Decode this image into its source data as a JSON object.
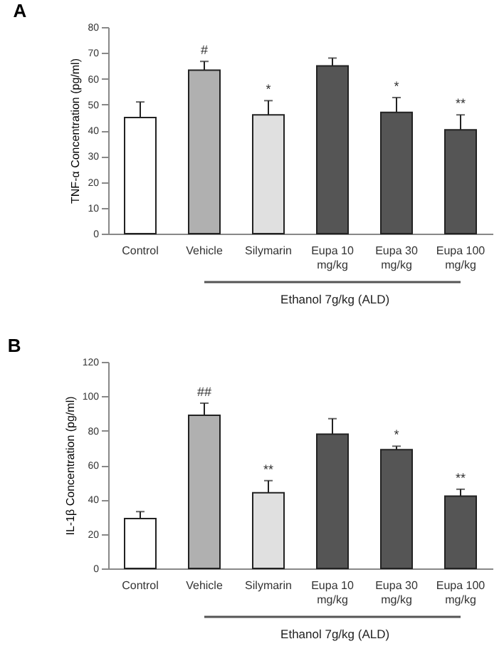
{
  "chart_data": [
    {
      "type": "bar",
      "title": "A",
      "ylabel": "TNF-α Concentration (pg/ml)",
      "categories": [
        "Control",
        "Vehicle",
        "Silymarin",
        "Eupa 10\nmg/kg",
        "Eupa 30\nmg/kg",
        "Eupa 100\nmg/kg"
      ],
      "values": [
        45,
        63.3,
        46,
        65,
        47,
        40.2
      ],
      "errors": [
        [
          45,
          51
        ],
        [
          63.3,
          66.7
        ],
        [
          46,
          51.5
        ],
        [
          65,
          68
        ],
        [
          47,
          52.7
        ],
        [
          40.2,
          46
        ]
      ],
      "colors": [
        "#ffffff",
        "#b0b0b0",
        "#e0e0e0",
        "#555555",
        "#555555",
        "#555555"
      ],
      "ylim": [
        0,
        80
      ],
      "yticks": [
        0,
        10,
        20,
        30,
        40,
        50,
        60,
        70,
        80
      ],
      "grid": false,
      "annotations": [
        {
          "text": "#",
          "x": "Vehicle",
          "y": 66.7
        },
        {
          "text": "*",
          "x": "Silymarin",
          "y": 51.5
        },
        {
          "text": "*",
          "x": "Eupa 30\nmg/kg",
          "y": 52.7
        },
        {
          "text": "**",
          "x": "Eupa 100\nmg/kg",
          "y": 46
        },
        "Ethanol 7g/kg (ALD)"
      ]
    },
    {
      "type": "bar",
      "title": "B",
      "ylabel": "IL-1β Concentration (pg/ml)",
      "categories": [
        "Control",
        "Vehicle",
        "Silymarin",
        "Eupa 10\nmg/kg",
        "Eupa 30\nmg/kg",
        "Eupa 100\nmg/kg"
      ],
      "values": [
        29,
        89,
        44,
        78,
        69,
        42
      ],
      "errors": [
        [
          29,
          33
        ],
        [
          89,
          96
        ],
        [
          44,
          51
        ],
        [
          78,
          87
        ],
        [
          69,
          71
        ],
        [
          42,
          46
        ]
      ],
      "colors": [
        "#ffffff",
        "#b0b0b0",
        "#e0e0e0",
        "#555555",
        "#555555",
        "#555555"
      ],
      "ylim": [
        0,
        120
      ],
      "yticks": [
        0,
        20,
        40,
        60,
        80,
        100,
        120
      ],
      "grid": false,
      "annotations": [
        {
          "text": "##",
          "x": "Vehicle",
          "y": 96
        },
        {
          "text": "**",
          "x": "Silymarin",
          "y": 51
        },
        {
          "text": "*",
          "x": "Eupa 30\nmg/kg",
          "y": 71
        },
        {
          "text": "**",
          "x": "Eupa 100\nmg/kg",
          "y": 46
        },
        "Ethanol 7g/kg (ALD)"
      ]
    }
  ]
}
